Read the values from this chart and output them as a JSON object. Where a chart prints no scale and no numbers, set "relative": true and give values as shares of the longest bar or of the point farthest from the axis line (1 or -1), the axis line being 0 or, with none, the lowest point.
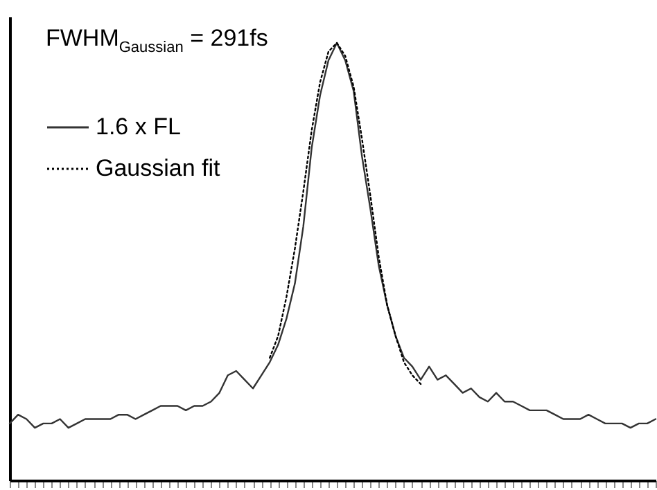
{
  "chart_data": {
    "type": "line",
    "relative": true,
    "legend": "top left",
    "line_style": "solid",
    "categories": [
      null,
      null,
      null,
      null,
      null,
      null,
      null,
      null,
      null,
      null,
      null,
      null,
      null,
      null,
      null,
      null,
      null,
      null,
      null,
      null,
      null,
      null,
      null,
      null,
      null,
      null,
      null,
      null,
      null,
      null,
      null,
      null,
      null,
      null,
      null,
      null,
      null,
      null,
      null,
      null,
      null,
      null,
      null,
      null,
      null,
      null,
      null,
      null,
      null,
      null,
      null,
      null,
      null,
      null,
      null,
      null,
      null,
      null,
      null,
      null,
      null,
      null,
      null,
      null,
      null,
      null,
      null,
      null,
      null,
      null,
      null,
      null,
      null,
      null,
      null,
      null,
      null,
      null
    ],
    "series": [
      {
        "name": "1.6 x FL",
        "color": "#333333",
        "values": [
          0.13,
          0.15,
          0.14,
          0.12,
          0.13,
          0.13,
          0.14,
          0.12,
          0.13,
          0.14,
          0.14,
          0.14,
          0.14,
          0.15,
          0.15,
          0.14,
          0.15,
          0.16,
          0.17,
          0.17,
          0.17,
          0.16,
          0.17,
          0.17,
          0.18,
          0.2,
          0.24,
          0.25,
          0.23,
          0.21,
          0.24,
          0.27,
          0.31,
          0.37,
          0.45,
          0.58,
          0.76,
          0.88,
          0.96,
          1,
          0.96,
          0.89,
          0.74,
          0.62,
          0.49,
          0.4,
          0.33,
          0.28,
          0.26,
          0.23,
          0.26,
          0.23,
          0.24,
          0.22,
          0.2,
          0.21,
          0.19,
          0.18,
          0.2,
          0.18,
          0.18,
          0.17,
          0.16,
          0.16,
          0.16,
          0.15,
          0.14,
          0.14,
          0.14,
          0.15,
          0.14,
          0.13,
          0.13,
          0.13,
          0.12,
          0.13,
          0.13,
          0.14
        ]
      },
      {
        "name": "Gaussian fit",
        "color": "#000000",
        "line_style": "dotted",
        "values": [
          null,
          null,
          null,
          null,
          null,
          null,
          null,
          null,
          null,
          null,
          null,
          null,
          null,
          null,
          null,
          null,
          null,
          null,
          null,
          null,
          null,
          null,
          null,
          null,
          null,
          null,
          null,
          null,
          null,
          null,
          null,
          0.28,
          0.33,
          0.42,
          0.53,
          0.66,
          0.8,
          0.91,
          0.98,
          1.0,
          0.97,
          0.9,
          0.78,
          0.65,
          0.51,
          0.4,
          0.33,
          0.27,
          0.24,
          0.22,
          null,
          null,
          null,
          null,
          null,
          null,
          null,
          null,
          null,
          null,
          null,
          null,
          null,
          null,
          null,
          null,
          null,
          null,
          null,
          null,
          null,
          null,
          null,
          null,
          null,
          null,
          null,
          null
        ]
      }
    ],
    "annotations": [
      "FWHM$_{Gaussian}$ = 291fs"
    ]
  }
}
